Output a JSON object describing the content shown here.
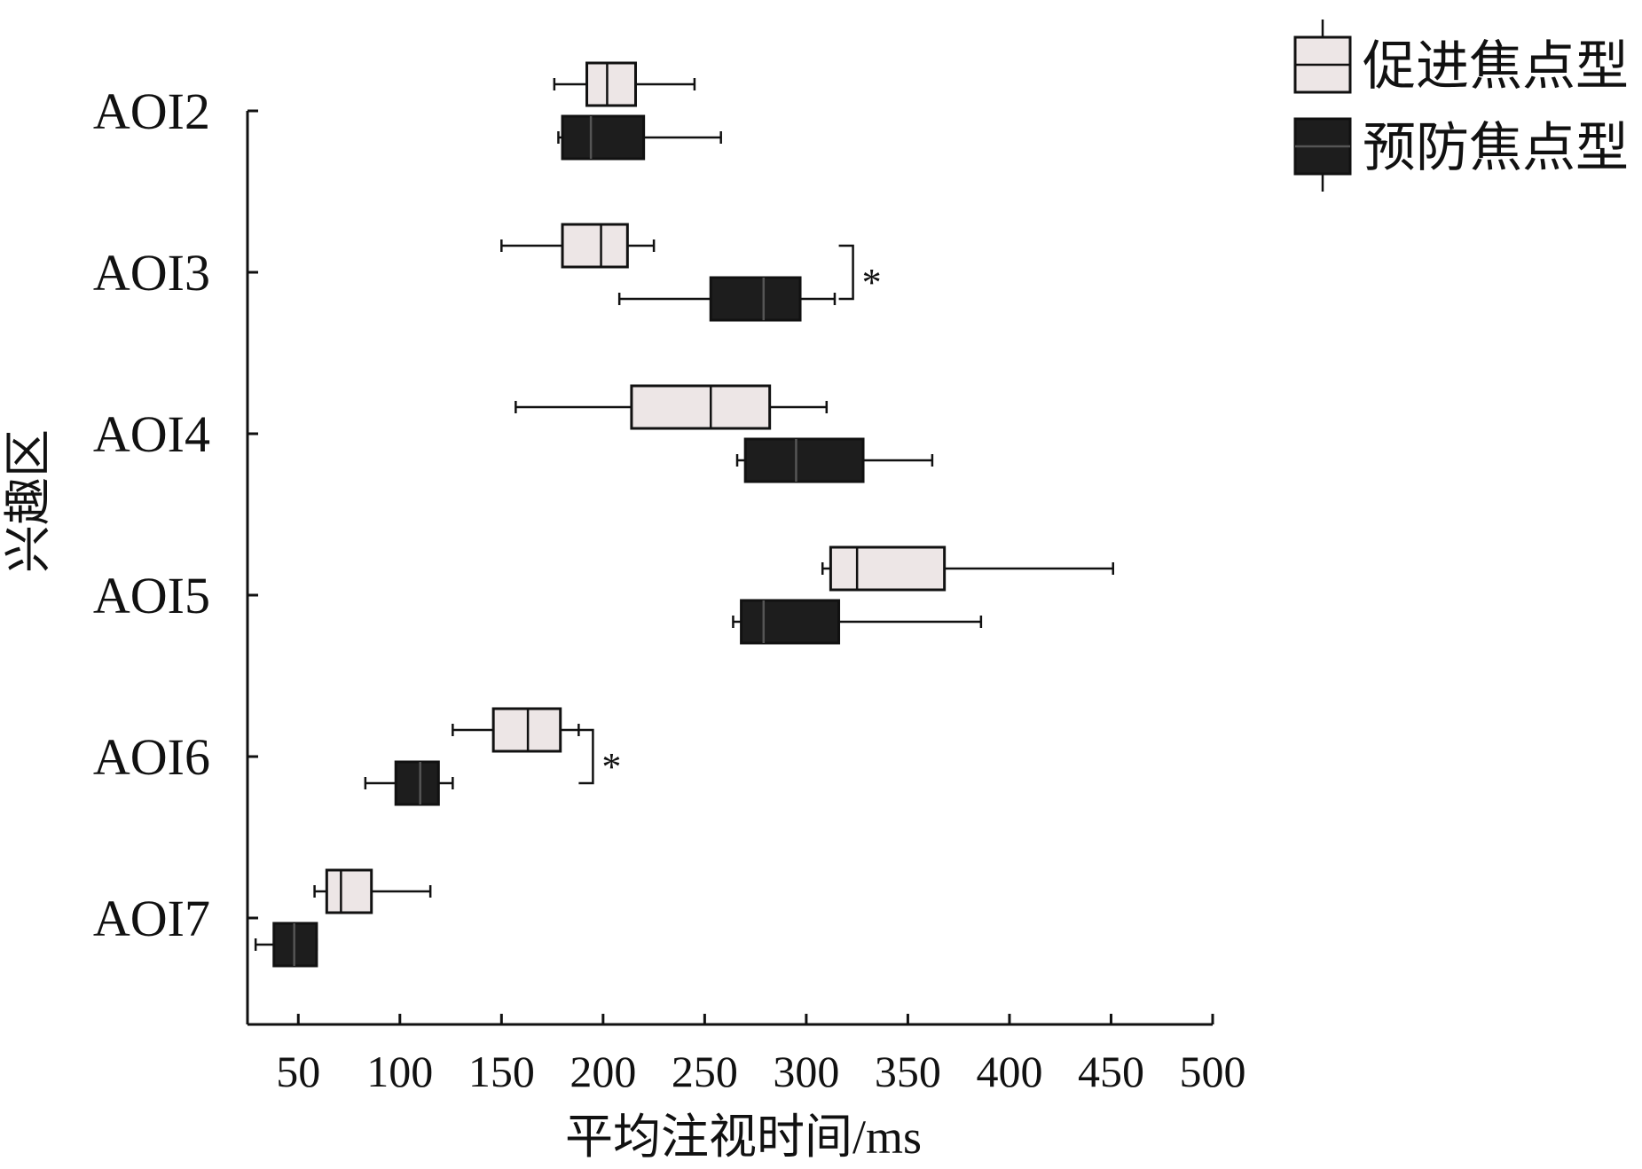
{
  "chart_data": {
    "type": "boxplot",
    "orientation": "horizontal",
    "xlabel": "平均注视时间/ms",
    "ylabel": "兴趣区",
    "xlim": [
      25,
      500
    ],
    "xticks": [
      50,
      100,
      150,
      200,
      250,
      300,
      350,
      400,
      450,
      500
    ],
    "categories": [
      "AOI2",
      "AOI3",
      "AOI4",
      "AOI5",
      "AOI6",
      "AOI7"
    ],
    "legend_position": "top-right",
    "series": [
      {
        "name": "促进焦点型",
        "fill": "#ede6e6",
        "boxes": [
          {
            "whisker_low": 176,
            "q1": 192,
            "median": 202,
            "q3": 216,
            "whisker_high": 245
          },
          {
            "whisker_low": 150,
            "q1": 180,
            "median": 199,
            "q3": 212,
            "whisker_high": 225
          },
          {
            "whisker_low": 157,
            "q1": 214,
            "median": 253,
            "q3": 282,
            "whisker_high": 310
          },
          {
            "whisker_low": 308,
            "q1": 312,
            "median": 325,
            "q3": 368,
            "whisker_high": 451
          },
          {
            "whisker_low": 126,
            "q1": 146,
            "median": 163,
            "q3": 179,
            "whisker_high": 188
          },
          {
            "whisker_low": 58,
            "q1": 64,
            "median": 71,
            "q3": 86,
            "whisker_high": 115
          }
        ]
      },
      {
        "name": "预防焦点型",
        "fill": "#1d1d1d",
        "boxes": [
          {
            "whisker_low": 178,
            "q1": 180,
            "median": 194,
            "q3": 220,
            "whisker_high": 258
          },
          {
            "whisker_low": 208,
            "q1": 253,
            "median": 279,
            "q3": 297,
            "whisker_high": 314
          },
          {
            "whisker_low": 266,
            "q1": 270,
            "median": 295,
            "q3": 328,
            "whisker_high": 362
          },
          {
            "whisker_low": 264,
            "q1": 268,
            "median": 279,
            "q3": 316,
            "whisker_high": 386
          },
          {
            "whisker_low": 83,
            "q1": 98,
            "median": 110,
            "q3": 119,
            "whisker_high": 126
          },
          {
            "whisker_low": 29,
            "q1": 38,
            "median": 48,
            "q3": 59,
            "whisker_high": 59
          }
        ]
      }
    ],
    "significance": [
      {
        "category": "AOI3",
        "x": 323,
        "label": "*"
      },
      {
        "category": "AOI6",
        "x": 195,
        "label": "*"
      }
    ]
  }
}
